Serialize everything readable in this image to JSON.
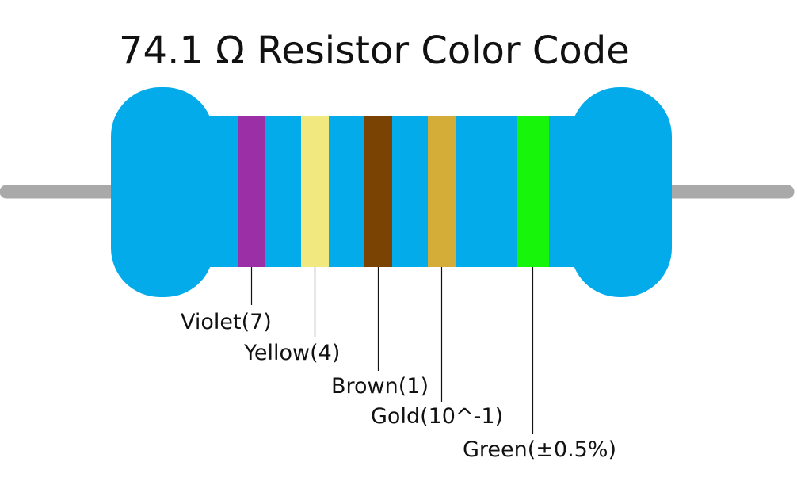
{
  "title": "74.1 Ω Resistor Color Code",
  "bands": [
    {
      "label": "Violet(7)",
      "color": "#9b2fa5"
    },
    {
      "label": "Yellow(4)",
      "color": "#f2e880"
    },
    {
      "label": "Brown(1)",
      "color": "#7a4203"
    },
    {
      "label": "Gold(10^-1)",
      "color": "#d3ad37"
    },
    {
      "label": "Green(±0.5%)",
      "color": "#17f50a"
    }
  ]
}
